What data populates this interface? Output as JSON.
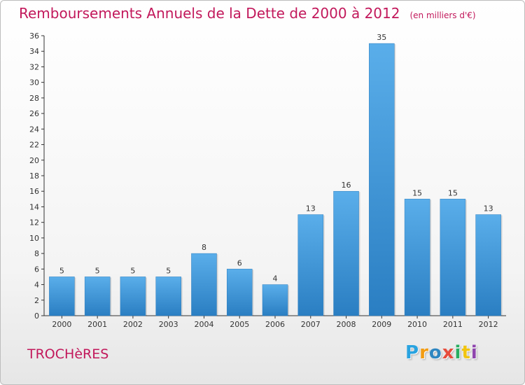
{
  "header": {
    "title": "Remboursements Annuels de la Dette de 2000 à 2012",
    "subtitle": "(en milliers d'€)"
  },
  "footer": {
    "commune": "TROCHèRES",
    "logo_text": "Proxiti"
  },
  "colors": {
    "title": "#c2185b",
    "bar_top": "#5aaeea",
    "bar_bottom": "#2a7ec2",
    "axis": "#333333"
  },
  "chart_data": {
    "type": "bar",
    "categories": [
      "2000",
      "2001",
      "2002",
      "2003",
      "2004",
      "2005",
      "2006",
      "2007",
      "2008",
      "2009",
      "2010",
      "2011",
      "2012"
    ],
    "values": [
      5,
      5,
      5,
      5,
      8,
      6,
      4,
      13,
      16,
      35,
      15,
      15,
      13
    ],
    "ylim": [
      0,
      36
    ],
    "yticks": [
      0,
      2,
      4,
      6,
      8,
      10,
      12,
      14,
      16,
      18,
      20,
      22,
      24,
      26,
      28,
      30,
      32,
      34,
      36
    ],
    "data_labels": true,
    "grid": false
  }
}
